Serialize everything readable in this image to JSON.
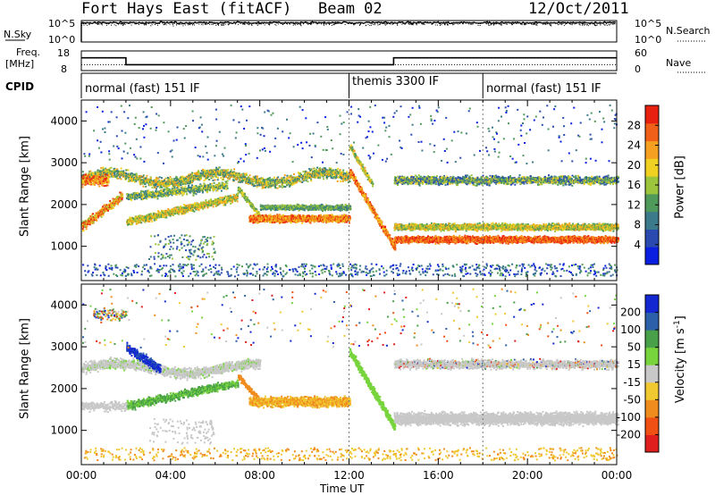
{
  "header": {
    "station": "Fort Hays East (fitACF)",
    "beam": "Beam 02",
    "date": "12/Oct/2011"
  },
  "panels": {
    "nsky_label": "N.Sky",
    "nsearch_label": "N.Search",
    "nsky_ticks": [
      "10^5",
      "10^0"
    ],
    "nsearch_ticks": [
      "10^5",
      "10^0"
    ],
    "freq_label": "Freq.",
    "freq_unit": "[MHz]",
    "freq_ticks": [
      "18",
      "8"
    ],
    "nave_label": "Nave",
    "nave_ticks": [
      "60",
      "0"
    ],
    "cpid_label": "CPID",
    "cpid_modes": [
      {
        "label": "normal (fast) 151 IF",
        "start_hour": 0,
        "end_hour": 12
      },
      {
        "label": "themis 3300 IF",
        "start_hour": 12,
        "end_hour": 18
      },
      {
        "label": "normal (fast) 151 IF",
        "start_hour": 18,
        "end_hour": 24
      }
    ],
    "freq_steps": [
      {
        "from": 0,
        "to": 2,
        "value": 14.5
      },
      {
        "from": 2,
        "to": 14,
        "value": 11.0
      },
      {
        "from": 14,
        "to": 24,
        "value": 14.5
      }
    ]
  },
  "axes": {
    "ylabel": "Slant Range [km]",
    "xlabel": "Time UT",
    "x_ticks": [
      "00:00",
      "04:00",
      "08:00",
      "12:00",
      "16:00",
      "20:00",
      "00:00"
    ],
    "y_ticks": [
      "1000",
      "2000",
      "3000",
      "4000"
    ]
  },
  "colorbars": {
    "power": {
      "label": "Power [dB]",
      "ticks": [
        "4",
        "8",
        "12",
        "16",
        "20",
        "24",
        "28"
      ],
      "colors": [
        "#0a1fe0",
        "#2a4ab0",
        "#3b7a8a",
        "#4f9a5a",
        "#9cc43c",
        "#f0d020",
        "#f5a020",
        "#f06018",
        "#e82010"
      ]
    },
    "velocity": {
      "label_main": "Velocity [m s",
      "label_sup": "-1",
      "label_end": "]",
      "ticks": [
        "200",
        "100",
        "50",
        "15",
        "-15",
        "-50",
        "-100",
        "-200"
      ],
      "colors": [
        "#1428d2",
        "#2c60a8",
        "#48a048",
        "#78d43c",
        "#c8c8c8",
        "#f0c830",
        "#f08c1e",
        "#f05014",
        "#e01e1e"
      ]
    }
  },
  "chart_data": [
    {
      "type": "line",
      "name": "N.Sky / N.Search",
      "x_range": [
        0,
        24
      ],
      "ylim_log10": [
        0,
        5
      ],
      "x_hours": [
        0,
        0.5,
        2,
        4,
        6,
        8,
        10,
        12,
        14,
        16,
        18,
        20,
        22,
        24
      ],
      "nsky_log10": [
        0,
        4.4,
        4.5,
        4.5,
        4.6,
        4.5,
        4.5,
        4.6,
        4.5,
        4.6,
        4.6,
        4.7,
        4.6,
        4.6
      ],
      "nsearch_log10": [
        0,
        4.3,
        4.4,
        4.4,
        4.5,
        4.4,
        4.4,
        4.5,
        4.4,
        4.5,
        4.5,
        4.6,
        4.5,
        4.5
      ]
    },
    {
      "type": "line",
      "name": "Freq. [MHz] / Nave",
      "x_range": [
        0,
        24
      ],
      "freq_ylim": [
        8,
        18
      ],
      "nave_ylim": [
        0,
        60
      ],
      "nave_x": [
        0,
        24
      ],
      "nave_values": [
        18,
        18
      ]
    },
    {
      "type": "heatmap",
      "title": "Power [dB]",
      "x_range_hours": [
        0,
        24
      ],
      "y_range_km": [
        180,
        4500
      ],
      "ylabel": "Slant Range [km]",
      "colorbar_range": [
        0,
        32
      ],
      "features": [
        {
          "start_hour": 0,
          "end_hour": 12,
          "range_km": 2700,
          "power_db": 20
        },
        {
          "start_hour": 0,
          "end_hour": 2,
          "range_km": 1500,
          "power_db": 24
        },
        {
          "start_hour": 6,
          "end_hour": 12,
          "range_km": 1700,
          "power_db": 26
        },
        {
          "start_hour": 12,
          "end_hour": 14,
          "range_km": 1600,
          "power_db": 24
        },
        {
          "start_hour": 14,
          "end_hour": 24,
          "range_km": 1200,
          "power_db": 26
        },
        {
          "start_hour": 14,
          "end_hour": 24,
          "range_km": 2600,
          "power_db": 16
        }
      ]
    },
    {
      "type": "heatmap",
      "title": "Velocity [m s-1]",
      "x_range_hours": [
        0,
        24
      ],
      "y_range_km": [
        180,
        4500
      ],
      "ylabel": "Slant Range [km]",
      "colorbar_range": [
        -200,
        200
      ],
      "features": [
        {
          "start_hour": 0,
          "end_hour": 8,
          "range_km": 2500,
          "velocity": 0
        },
        {
          "start_hour": 2,
          "end_hour": 3.5,
          "range_km": 3000,
          "velocity": 200
        },
        {
          "start_hour": 2,
          "end_hour": 7,
          "range_km": 1700,
          "velocity": 50
        },
        {
          "start_hour": 7,
          "end_hour": 12,
          "range_km": 1700,
          "velocity": -50
        },
        {
          "start_hour": 12,
          "end_hour": 14,
          "range_km": 2300,
          "velocity": 50
        },
        {
          "start_hour": 14,
          "end_hour": 24,
          "range_km": 1300,
          "velocity": 0
        },
        {
          "start_hour": 14,
          "end_hour": 24,
          "range_km": 2600,
          "velocity": 0
        }
      ]
    }
  ]
}
